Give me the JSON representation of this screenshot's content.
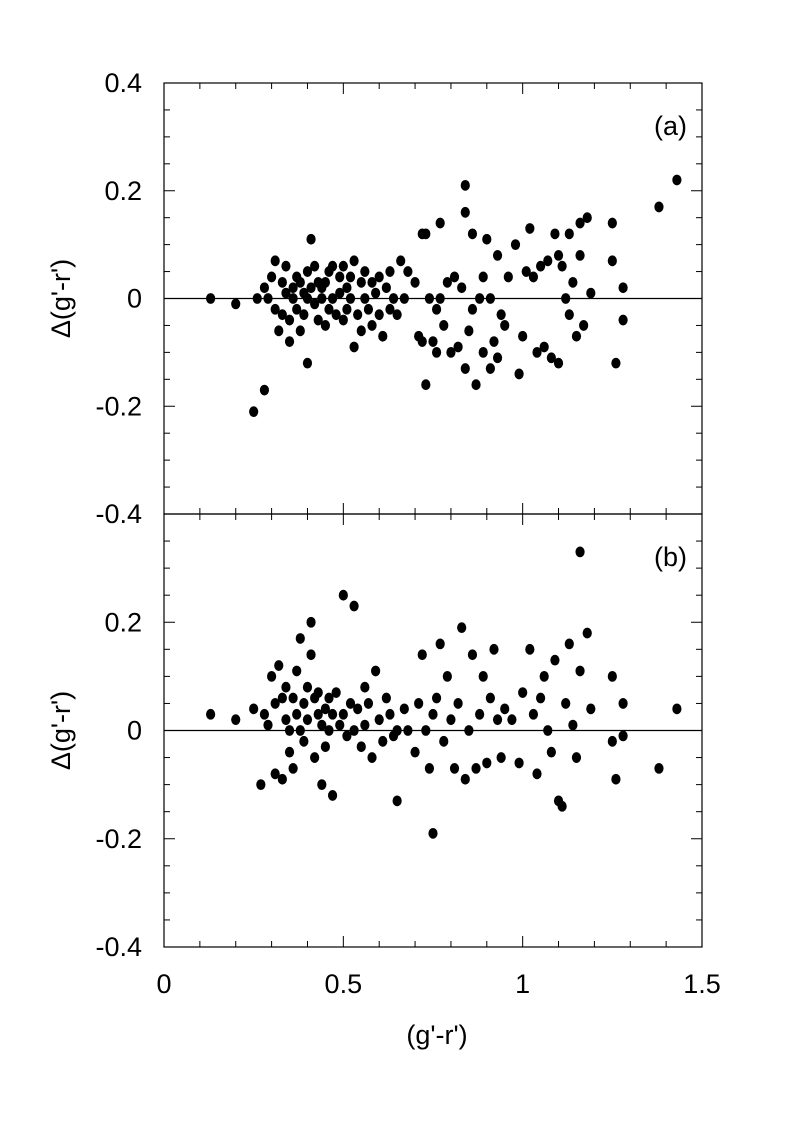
{
  "chart_data": [
    {
      "type": "scatter",
      "panel_label": "(a)",
      "ylabel": "Δ(g'-r')",
      "xlabel": "",
      "xlim": [
        0,
        1.5
      ],
      "ylim": [
        -0.4,
        0.4
      ],
      "yticks": [
        "0.4",
        "0.2",
        "0",
        "-0.2",
        "-0.4"
      ],
      "xticks": [],
      "zero_line": true,
      "points": [
        [
          0.13,
          0.0
        ],
        [
          0.2,
          -0.01
        ],
        [
          0.25,
          -0.21
        ],
        [
          0.28,
          -0.17
        ],
        [
          0.26,
          0.0
        ],
        [
          0.28,
          0.02
        ],
        [
          0.29,
          0.0
        ],
        [
          0.3,
          0.04
        ],
        [
          0.31,
          0.07
        ],
        [
          0.31,
          -0.02
        ],
        [
          0.32,
          -0.06
        ],
        [
          0.33,
          0.03
        ],
        [
          0.33,
          -0.03
        ],
        [
          0.34,
          0.06
        ],
        [
          0.34,
          0.01
        ],
        [
          0.35,
          -0.04
        ],
        [
          0.35,
          -0.08
        ],
        [
          0.36,
          0.02
        ],
        [
          0.36,
          0.0
        ],
        [
          0.37,
          0.04
        ],
        [
          0.37,
          -0.02
        ],
        [
          0.38,
          0.03
        ],
        [
          0.38,
          -0.06
        ],
        [
          0.39,
          0.01
        ],
        [
          0.39,
          -0.03
        ],
        [
          0.4,
          0.05
        ],
        [
          0.4,
          0.0
        ],
        [
          0.4,
          -0.12
        ],
        [
          0.41,
          0.11
        ],
        [
          0.41,
          0.02
        ],
        [
          0.42,
          -0.01
        ],
        [
          0.42,
          0.06
        ],
        [
          0.43,
          0.03
        ],
        [
          0.43,
          -0.04
        ],
        [
          0.44,
          0.0
        ],
        [
          0.44,
          0.02
        ],
        [
          0.45,
          -0.05
        ],
        [
          0.45,
          0.03
        ],
        [
          0.46,
          -0.02
        ],
        [
          0.46,
          0.05
        ],
        [
          0.47,
          0.0
        ],
        [
          0.47,
          0.06
        ],
        [
          0.48,
          -0.03
        ],
        [
          0.49,
          0.04
        ],
        [
          0.49,
          0.01
        ],
        [
          0.5,
          -0.04
        ],
        [
          0.5,
          0.06
        ],
        [
          0.51,
          0.02
        ],
        [
          0.51,
          -0.02
        ],
        [
          0.52,
          0.04
        ],
        [
          0.52,
          0.0
        ],
        [
          0.53,
          0.07
        ],
        [
          0.53,
          -0.09
        ],
        [
          0.54,
          -0.03
        ],
        [
          0.55,
          0.03
        ],
        [
          0.55,
          -0.06
        ],
        [
          0.56,
          0.0
        ],
        [
          0.56,
          0.05
        ],
        [
          0.57,
          -0.02
        ],
        [
          0.58,
          0.03
        ],
        [
          0.58,
          -0.05
        ],
        [
          0.59,
          0.01
        ],
        [
          0.6,
          0.04
        ],
        [
          0.6,
          -0.03
        ],
        [
          0.61,
          -0.07
        ],
        [
          0.62,
          0.02
        ],
        [
          0.63,
          0.05
        ],
        [
          0.63,
          -0.02
        ],
        [
          0.64,
          0.0
        ],
        [
          0.65,
          -0.03
        ],
        [
          0.66,
          0.07
        ],
        [
          0.67,
          0.0
        ],
        [
          0.68,
          0.05
        ],
        [
          0.7,
          0.03
        ],
        [
          0.71,
          -0.07
        ],
        [
          0.72,
          -0.08
        ],
        [
          0.72,
          0.12
        ],
        [
          0.73,
          -0.16
        ],
        [
          0.73,
          0.12
        ],
        [
          0.74,
          0.0
        ],
        [
          0.75,
          -0.08
        ],
        [
          0.76,
          -0.1
        ],
        [
          0.76,
          -0.02
        ],
        [
          0.77,
          0.14
        ],
        [
          0.77,
          0.0
        ],
        [
          0.78,
          -0.05
        ],
        [
          0.79,
          0.03
        ],
        [
          0.8,
          -0.1
        ],
        [
          0.81,
          0.04
        ],
        [
          0.82,
          -0.09
        ],
        [
          0.83,
          0.02
        ],
        [
          0.84,
          -0.13
        ],
        [
          0.84,
          0.16
        ],
        [
          0.84,
          0.21
        ],
        [
          0.85,
          -0.06
        ],
        [
          0.86,
          0.12
        ],
        [
          0.86,
          -0.02
        ],
        [
          0.87,
          -0.16
        ],
        [
          0.88,
          0.0
        ],
        [
          0.89,
          -0.1
        ],
        [
          0.89,
          0.04
        ],
        [
          0.9,
          0.11
        ],
        [
          0.91,
          0.0
        ],
        [
          0.91,
          -0.13
        ],
        [
          0.92,
          -0.08
        ],
        [
          0.93,
          0.08
        ],
        [
          0.93,
          -0.11
        ],
        [
          0.94,
          -0.03
        ],
        [
          0.95,
          -0.05
        ],
        [
          0.96,
          0.04
        ],
        [
          0.98,
          0.1
        ],
        [
          0.99,
          -0.14
        ],
        [
          1.0,
          -0.07
        ],
        [
          1.01,
          0.05
        ],
        [
          1.02,
          0.13
        ],
        [
          1.03,
          0.04
        ],
        [
          1.04,
          -0.1
        ],
        [
          1.05,
          0.06
        ],
        [
          1.06,
          -0.09
        ],
        [
          1.07,
          0.07
        ],
        [
          1.08,
          -0.11
        ],
        [
          1.09,
          0.12
        ],
        [
          1.1,
          0.08
        ],
        [
          1.1,
          -0.12
        ],
        [
          1.11,
          0.06
        ],
        [
          1.12,
          0.0
        ],
        [
          1.13,
          0.12
        ],
        [
          1.13,
          -0.03
        ],
        [
          1.14,
          0.03
        ],
        [
          1.15,
          -0.07
        ],
        [
          1.16,
          0.14
        ],
        [
          1.16,
          0.08
        ],
        [
          1.17,
          -0.05
        ],
        [
          1.18,
          0.15
        ],
        [
          1.19,
          0.01
        ],
        [
          1.25,
          0.14
        ],
        [
          1.26,
          -0.12
        ],
        [
          1.25,
          0.07
        ],
        [
          1.28,
          0.02
        ],
        [
          1.28,
          -0.04
        ],
        [
          1.38,
          0.17
        ],
        [
          1.43,
          0.22
        ]
      ]
    },
    {
      "type": "scatter",
      "panel_label": "(b)",
      "ylabel": "Δ(g'-r')",
      "xlabel": "(g'-r')",
      "xlim": [
        0,
        1.5
      ],
      "ylim": [
        -0.4,
        0.4
      ],
      "yticks": [
        "0.2",
        "0",
        "-0.2",
        "-0.4"
      ],
      "xticks": [
        "0",
        "0.5",
        "1",
        "1.5"
      ],
      "zero_line": true,
      "points": [
        [
          0.13,
          0.03
        ],
        [
          0.2,
          0.02
        ],
        [
          0.25,
          0.04
        ],
        [
          0.27,
          -0.1
        ],
        [
          0.28,
          0.03
        ],
        [
          0.29,
          0.01
        ],
        [
          0.3,
          0.1
        ],
        [
          0.31,
          0.05
        ],
        [
          0.31,
          -0.08
        ],
        [
          0.32,
          0.12
        ],
        [
          0.33,
          0.06
        ],
        [
          0.33,
          -0.09
        ],
        [
          0.34,
          0.02
        ],
        [
          0.34,
          0.08
        ],
        [
          0.35,
          -0.04
        ],
        [
          0.35,
          0.0
        ],
        [
          0.36,
          0.06
        ],
        [
          0.36,
          -0.07
        ],
        [
          0.37,
          0.03
        ],
        [
          0.37,
          0.11
        ],
        [
          0.38,
          0.0
        ],
        [
          0.38,
          0.17
        ],
        [
          0.39,
          0.05
        ],
        [
          0.39,
          -0.02
        ],
        [
          0.4,
          0.08
        ],
        [
          0.4,
          0.02
        ],
        [
          0.41,
          0.2
        ],
        [
          0.41,
          0.14
        ],
        [
          0.42,
          0.06
        ],
        [
          0.42,
          -0.05
        ],
        [
          0.43,
          0.03
        ],
        [
          0.43,
          0.07
        ],
        [
          0.44,
          -0.1
        ],
        [
          0.44,
          0.01
        ],
        [
          0.45,
          0.04
        ],
        [
          0.45,
          -0.03
        ],
        [
          0.46,
          0.06
        ],
        [
          0.46,
          0.0
        ],
        [
          0.47,
          -0.12
        ],
        [
          0.47,
          0.03
        ],
        [
          0.48,
          0.07
        ],
        [
          0.49,
          0.01
        ],
        [
          0.5,
          0.25
        ],
        [
          0.5,
          0.03
        ],
        [
          0.51,
          -0.01
        ],
        [
          0.52,
          0.05
        ],
        [
          0.53,
          0.23
        ],
        [
          0.53,
          0.0
        ],
        [
          0.54,
          0.04
        ],
        [
          0.55,
          -0.03
        ],
        [
          0.56,
          0.08
        ],
        [
          0.56,
          0.01
        ],
        [
          0.57,
          0.05
        ],
        [
          0.58,
          -0.05
        ],
        [
          0.59,
          0.11
        ],
        [
          0.6,
          0.02
        ],
        [
          0.61,
          -0.02
        ],
        [
          0.62,
          0.06
        ],
        [
          0.63,
          0.03
        ],
        [
          0.64,
          -0.01
        ],
        [
          0.65,
          0.0
        ],
        [
          0.65,
          -0.13
        ],
        [
          0.67,
          0.04
        ],
        [
          0.68,
          0.0
        ],
        [
          0.7,
          -0.04
        ],
        [
          0.71,
          0.05
        ],
        [
          0.72,
          0.14
        ],
        [
          0.73,
          0.0
        ],
        [
          0.74,
          -0.07
        ],
        [
          0.75,
          0.03
        ],
        [
          0.75,
          -0.19
        ],
        [
          0.76,
          0.06
        ],
        [
          0.77,
          0.16
        ],
        [
          0.78,
          -0.02
        ],
        [
          0.79,
          0.1
        ],
        [
          0.8,
          0.02
        ],
        [
          0.81,
          -0.07
        ],
        [
          0.82,
          0.05
        ],
        [
          0.83,
          0.19
        ],
        [
          0.84,
          -0.09
        ],
        [
          0.85,
          0.0
        ],
        [
          0.86,
          0.14
        ],
        [
          0.87,
          -0.07
        ],
        [
          0.88,
          0.03
        ],
        [
          0.89,
          0.1
        ],
        [
          0.9,
          -0.06
        ],
        [
          0.91,
          0.06
        ],
        [
          0.92,
          0.15
        ],
        [
          0.93,
          0.02
        ],
        [
          0.94,
          -0.05
        ],
        [
          0.95,
          0.04
        ],
        [
          0.97,
          0.02
        ],
        [
          0.99,
          -0.06
        ],
        [
          1.0,
          0.07
        ],
        [
          1.02,
          0.15
        ],
        [
          1.03,
          0.03
        ],
        [
          1.04,
          -0.08
        ],
        [
          1.05,
          0.06
        ],
        [
          1.06,
          0.1
        ],
        [
          1.07,
          0.0
        ],
        [
          1.08,
          -0.04
        ],
        [
          1.09,
          0.13
        ],
        [
          1.1,
          -0.13
        ],
        [
          1.11,
          -0.14
        ],
        [
          1.12,
          0.05
        ],
        [
          1.13,
          0.16
        ],
        [
          1.14,
          0.01
        ],
        [
          1.15,
          -0.05
        ],
        [
          1.16,
          0.11
        ],
        [
          1.16,
          0.33
        ],
        [
          1.18,
          0.18
        ],
        [
          1.19,
          0.04
        ],
        [
          1.25,
          0.1
        ],
        [
          1.25,
          -0.02
        ],
        [
          1.26,
          -0.09
        ],
        [
          1.28,
          0.05
        ],
        [
          1.28,
          -0.01
        ],
        [
          1.38,
          -0.07
        ],
        [
          1.43,
          0.04
        ]
      ]
    }
  ]
}
